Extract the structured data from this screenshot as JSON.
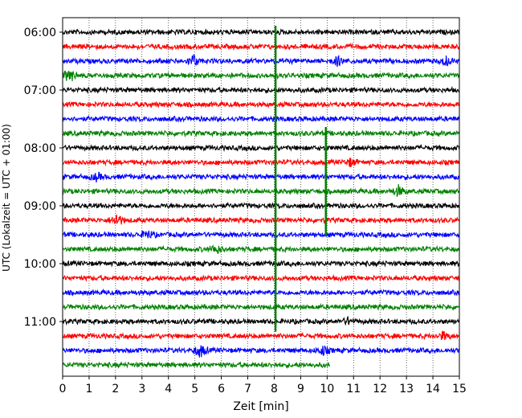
{
  "chart_data": {
    "type": "line",
    "subtype": "helicorder",
    "xlabel": "Zeit  [min]",
    "ylabel": "UTC (Lokalzeit = UTC + 01:00)",
    "xlim": [
      0,
      15
    ],
    "x_ticks": [
      0,
      1,
      2,
      3,
      4,
      5,
      6,
      7,
      8,
      9,
      10,
      11,
      12,
      13,
      14,
      15
    ],
    "y_tick_labels": [
      "06:00",
      "07:00",
      "08:00",
      "09:00",
      "10:00",
      "11:00"
    ],
    "grid": {
      "vertical": true,
      "style": "dotted"
    },
    "color_cycle": [
      "#000000",
      "#ff0000",
      "#0000ff",
      "#008000"
    ],
    "rows": [
      {
        "start": "06:00",
        "end_min": 15
      },
      {
        "start": "06:15",
        "end_min": 15
      },
      {
        "start": "06:30",
        "end_min": 15
      },
      {
        "start": "06:45",
        "end_min": 15
      },
      {
        "start": "07:00",
        "end_min": 15
      },
      {
        "start": "07:15",
        "end_min": 15
      },
      {
        "start": "07:30",
        "end_min": 15
      },
      {
        "start": "07:45",
        "end_min": 15
      },
      {
        "start": "08:00",
        "end_min": 15
      },
      {
        "start": "08:15",
        "end_min": 15
      },
      {
        "start": "08:30",
        "end_min": 15
      },
      {
        "start": "08:45",
        "end_min": 15
      },
      {
        "start": "09:00",
        "end_min": 15
      },
      {
        "start": "09:15",
        "end_min": 15
      },
      {
        "start": "09:30",
        "end_min": 15
      },
      {
        "start": "09:45",
        "end_min": 15
      },
      {
        "start": "10:00",
        "end_min": 15
      },
      {
        "start": "10:15",
        "end_min": 15
      },
      {
        "start": "10:30",
        "end_min": 15
      },
      {
        "start": "10:45",
        "end_min": 15
      },
      {
        "start": "11:00",
        "end_min": 15
      },
      {
        "start": "11:15",
        "end_min": 15
      },
      {
        "start": "11:30",
        "end_min": 15
      },
      {
        "start": "11:45",
        "end_min": 10.1
      }
    ],
    "events": [
      {
        "row": 3,
        "x": 0.25,
        "amp": 1.1
      },
      {
        "row": 2,
        "x": 4.95,
        "amp": 0.8
      },
      {
        "row": 2,
        "x": 10.4,
        "amp": 0.6
      },
      {
        "row": 2,
        "x": 14.5,
        "amp": 0.55
      },
      {
        "row": 10,
        "x": 1.3,
        "amp": 0.5
      },
      {
        "row": 11,
        "x": 12.7,
        "amp": 0.7
      },
      {
        "row": 13,
        "x": 2.05,
        "amp": 0.9
      },
      {
        "row": 14,
        "x": 3.2,
        "amp": 0.6
      },
      {
        "row": 15,
        "x": 5.8,
        "amp": 0.6
      },
      {
        "row": 9,
        "x": 10.9,
        "amp": 0.5
      },
      {
        "row": 22,
        "x": 5.2,
        "amp": 0.9
      },
      {
        "row": 22,
        "x": 9.85,
        "amp": 0.6
      },
      {
        "row": 21,
        "x": 14.4,
        "amp": 0.5
      },
      {
        "row": 20,
        "x": 10.8,
        "amp": 0.4
      }
    ],
    "spikes": [
      {
        "x": 8.05,
        "from_row": 0,
        "to_row": 20.7
      },
      {
        "x": 9.95,
        "from_row": 7,
        "to_row": 14.1
      }
    ]
  }
}
